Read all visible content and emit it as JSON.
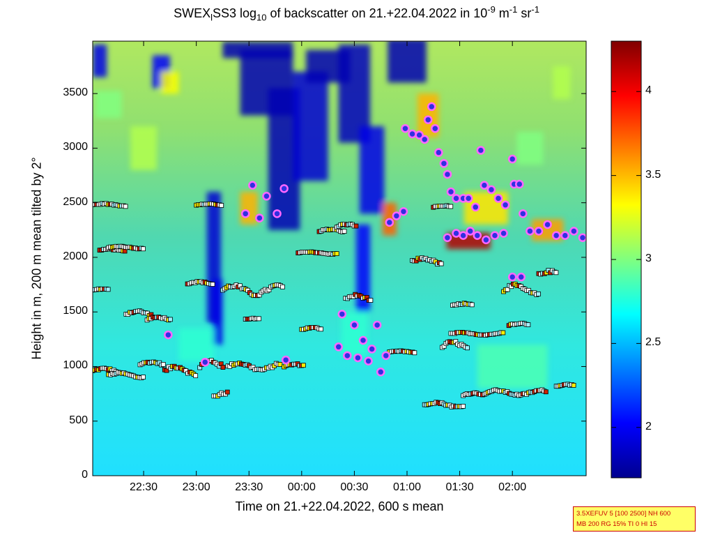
{
  "chart_data": {
    "type": "heatmap",
    "title_parts": {
      "pre": "SWEX",
      "sub1": "l",
      "mid": "SS3 log",
      "sub2": "10",
      "post": " of backscatter on 21.+22.04.2022 in 10",
      "sup1": "-9",
      "unit1": " m",
      "sup2": "-1",
      "unit2": " sr",
      "sup3": "-1"
    },
    "xlabel": "Time on 21.+22.04.2022, 600 s mean",
    "ylabel": "Height in m, 200 m mean tilted by 2°",
    "x_ticks": [
      "22:30",
      "23:00",
      "23:30",
      "00:00",
      "00:30",
      "01:00",
      "01:30",
      "02:00"
    ],
    "x_tick_minutes": [
      30,
      60,
      90,
      120,
      150,
      180,
      210,
      240
    ],
    "xlim_minutes": [
      1,
      282
    ],
    "x_minutes_origin": "22:00",
    "y_ticks": [
      "0",
      "500",
      "1000",
      "1500",
      "2000",
      "2500",
      "3000",
      "3500"
    ],
    "ylim": [
      0,
      3980
    ],
    "colorbar": {
      "ticks": [
        "2",
        "2.5",
        "3",
        "3.5",
        "4"
      ],
      "range": [
        1.7,
        4.3
      ],
      "colormap": "jet"
    },
    "colors": {
      "cloud_base_marker_fill": "#3030e0",
      "cloud_base_marker_edge": "#ff66ff",
      "layer_marker_white": "#ffffff",
      "layer_marker_red": "#cc2200",
      "layer_marker_yellow": "#ffee00"
    },
    "cloud_base_points": [
      {
        "x": 44,
        "y": 1290
      },
      {
        "x": 65,
        "y": 1040
      },
      {
        "x": 92,
        "y": 2660
      },
      {
        "x": 88,
        "y": 2400
      },
      {
        "x": 96,
        "y": 2360
      },
      {
        "x": 100,
        "y": 2560
      },
      {
        "x": 106,
        "y": 2400
      },
      {
        "x": 110,
        "y": 2630
      },
      {
        "x": 111,
        "y": 1060
      },
      {
        "x": 143,
        "y": 1480
      },
      {
        "x": 141,
        "y": 1180
      },
      {
        "x": 146,
        "y": 1100
      },
      {
        "x": 150,
        "y": 1380
      },
      {
        "x": 152,
        "y": 1080
      },
      {
        "x": 155,
        "y": 1240
      },
      {
        "x": 158,
        "y": 1050
      },
      {
        "x": 160,
        "y": 1160
      },
      {
        "x": 163,
        "y": 1380
      },
      {
        "x": 165,
        "y": 950
      },
      {
        "x": 168,
        "y": 1100
      },
      {
        "x": 170,
        "y": 2320
      },
      {
        "x": 174,
        "y": 2380
      },
      {
        "x": 178,
        "y": 2420
      },
      {
        "x": 179,
        "y": 3180
      },
      {
        "x": 183,
        "y": 3130
      },
      {
        "x": 187,
        "y": 3120
      },
      {
        "x": 190,
        "y": 3080
      },
      {
        "x": 192,
        "y": 3260
      },
      {
        "x": 194,
        "y": 3380
      },
      {
        "x": 196,
        "y": 3180
      },
      {
        "x": 198,
        "y": 2960
      },
      {
        "x": 201,
        "y": 2860
      },
      {
        "x": 203,
        "y": 2760
      },
      {
        "x": 205,
        "y": 2600
      },
      {
        "x": 208,
        "y": 2540
      },
      {
        "x": 212,
        "y": 2540
      },
      {
        "x": 215,
        "y": 2540
      },
      {
        "x": 219,
        "y": 2460
      },
      {
        "x": 222,
        "y": 2980
      },
      {
        "x": 224,
        "y": 2660
      },
      {
        "x": 228,
        "y": 2620
      },
      {
        "x": 232,
        "y": 2540
      },
      {
        "x": 236,
        "y": 2480
      },
      {
        "x": 240,
        "y": 2900
      },
      {
        "x": 241,
        "y": 2670
      },
      {
        "x": 244,
        "y": 2670
      },
      {
        "x": 246,
        "y": 2400
      },
      {
        "x": 203,
        "y": 2180
      },
      {
        "x": 208,
        "y": 2220
      },
      {
        "x": 212,
        "y": 2200
      },
      {
        "x": 216,
        "y": 2240
      },
      {
        "x": 220,
        "y": 2200
      },
      {
        "x": 225,
        "y": 2160
      },
      {
        "x": 230,
        "y": 2200
      },
      {
        "x": 235,
        "y": 2220
      },
      {
        "x": 240,
        "y": 1820
      },
      {
        "x": 245,
        "y": 1820
      },
      {
        "x": 250,
        "y": 2240
      },
      {
        "x": 255,
        "y": 2240
      },
      {
        "x": 260,
        "y": 2300
      },
      {
        "x": 265,
        "y": 2200
      },
      {
        "x": 270,
        "y": 2200
      },
      {
        "x": 275,
        "y": 2240
      },
      {
        "x": 280,
        "y": 2180
      }
    ],
    "layer_segments": [
      {
        "x0": 1,
        "x1": 15,
        "y": 960,
        "amp": 40
      },
      {
        "x0": 10,
        "x1": 30,
        "y": 920,
        "amp": 40
      },
      {
        "x0": 28,
        "x1": 42,
        "y": 1020,
        "amp": 40
      },
      {
        "x0": 42,
        "x1": 60,
        "y": 960,
        "amp": 80
      },
      {
        "x0": 62,
        "x1": 76,
        "y": 1000,
        "amp": 100
      },
      {
        "x0": 70,
        "x1": 78,
        "y": 720,
        "amp": 80
      },
      {
        "x0": 78,
        "x1": 108,
        "y": 1000,
        "amp": 60
      },
      {
        "x0": 110,
        "x1": 122,
        "y": 1000,
        "amp": 40
      },
      {
        "x0": 120,
        "x1": 132,
        "y": 1340,
        "amp": 30
      },
      {
        "x0": 20,
        "x1": 35,
        "y": 1480,
        "amp": 50
      },
      {
        "x0": 32,
        "x1": 46,
        "y": 1430,
        "amp": 40
      },
      {
        "x0": 5,
        "x1": 20,
        "y": 2060,
        "amp": 30
      },
      {
        "x0": 10,
        "x1": 30,
        "y": 2090,
        "amp": 20
      },
      {
        "x0": 55,
        "x1": 70,
        "y": 1760,
        "amp": 30
      },
      {
        "x0": 75,
        "x1": 110,
        "y": 1700,
        "amp": 80
      },
      {
        "x0": 88,
        "x1": 96,
        "y": 1430,
        "amp": 20
      },
      {
        "x0": 118,
        "x1": 140,
        "y": 2040,
        "amp": 20
      },
      {
        "x0": 130,
        "x1": 145,
        "y": 2240,
        "amp": 30
      },
      {
        "x0": 145,
        "x1": 160,
        "y": 1620,
        "amp": 60
      },
      {
        "x0": 170,
        "x1": 185,
        "y": 1130,
        "amp": 20
      },
      {
        "x0": 183,
        "x1": 200,
        "y": 1960,
        "amp": 60
      },
      {
        "x0": 200,
        "x1": 215,
        "y": 1180,
        "amp": 80
      },
      {
        "x0": 205,
        "x1": 235,
        "y": 1300,
        "amp": 20
      },
      {
        "x0": 190,
        "x1": 212,
        "y": 650,
        "amp": 40
      },
      {
        "x0": 212,
        "x1": 225,
        "y": 740,
        "amp": 30
      },
      {
        "x0": 225,
        "x1": 260,
        "y": 760,
        "amp": 40
      },
      {
        "x0": 238,
        "x1": 250,
        "y": 1380,
        "amp": 30
      },
      {
        "x0": 235,
        "x1": 255,
        "y": 1700,
        "amp": 80
      },
      {
        "x0": 255,
        "x1": 265,
        "y": 1840,
        "amp": 60
      },
      {
        "x0": 265,
        "x1": 275,
        "y": 820,
        "amp": 30
      },
      {
        "x0": 206,
        "x1": 218,
        "y": 1560,
        "amp": 30
      },
      {
        "x0": 1,
        "x1": 10,
        "y": 1700,
        "amp": 20
      },
      {
        "x0": 1,
        "x1": 20,
        "y": 2480,
        "amp": 20
      },
      {
        "x0": 60,
        "x1": 75,
        "y": 2480,
        "amp": 20
      },
      {
        "x0": 140,
        "x1": 152,
        "y": 2280,
        "amp": 40
      },
      {
        "x0": 195,
        "x1": 205,
        "y": 2460,
        "amp": 20
      }
    ]
  },
  "infobox": {
    "line1": "3.5XEFUV 5 [100 2500] NH 600",
    "line2": "MB 200 RG 15% TI 0 HI 15"
  }
}
